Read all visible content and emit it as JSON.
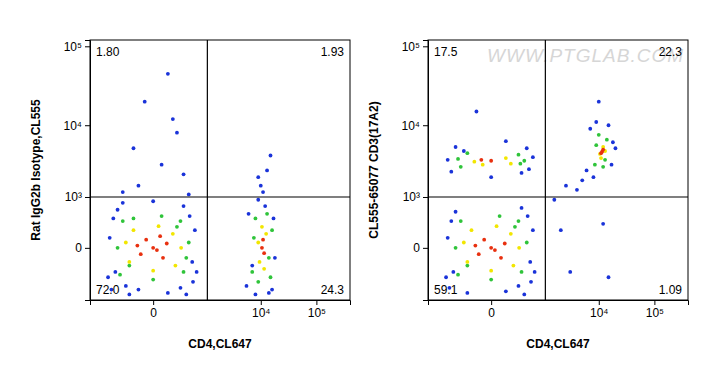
{
  "chart_data": [
    {
      "type": "scatter",
      "log": true,
      "x_label": "CD4,CL647",
      "y_label": "Rat IgG2b Isotype,CL555",
      "xlim": [
        -1500,
        400000
      ],
      "ylim": [
        -1050,
        120000
      ],
      "xticks": [
        0,
        {
          "value": 10000,
          "label": "10⁴"
        },
        {
          "value": 100000,
          "label": "10⁵"
        }
      ],
      "yticks": [
        0,
        {
          "value": 1000,
          "label": "10³"
        },
        {
          "value": 10000,
          "label": "10⁴"
        },
        {
          "value": 100000,
          "label": "10⁵"
        }
      ],
      "gates": {
        "x": 1000,
        "y": 1000
      },
      "quadrant_labels": [
        "1.80",
        "1.93",
        "72.0",
        "24.3"
      ],
      "series": [
        {
          "color": "#1a33d9",
          "x": [
            -550,
            -400,
            500,
            300,
            -600,
            550,
            -200,
            100,
            -450,
            420,
            -300,
            250,
            -500,
            480,
            0,
            -100,
            600,
            -650,
            350,
            -250,
            -100,
            50,
            200,
            -50,
            100,
            300,
            -300,
            150,
            -150,
            400,
            5500,
            17000,
            6000,
            16000,
            8000,
            12000,
            7000,
            18000,
            9000,
            14000,
            10000,
            13000,
            11000,
            15000,
            9000
          ],
          "values": [
            -700,
            600,
            -500,
            700,
            100,
            200,
            -850,
            -800,
            -300,
            450,
            800,
            -650,
            400,
            -150,
            850,
            -700,
            -300,
            -400,
            -850,
            -600,
            1500,
            3000,
            8000,
            20000,
            45000,
            2200,
            1200,
            12000,
            5000,
            1100,
            -600,
            400,
            500,
            -700,
            -850,
            700,
            -200,
            -100,
            900,
            -800,
            1500,
            2500,
            1200,
            4000,
            2000
          ]
        },
        {
          "color": "#2fc43a",
          "x": [
            -350,
            300,
            -300,
            250,
            -400,
            400,
            0,
            50,
            -200,
            200,
            -150,
            350,
            7000,
            16000,
            8000,
            15000,
            9000,
            13000,
            7500,
            14000
          ],
          "values": [
            -350,
            -300,
            350,
            350,
            0,
            50,
            -450,
            450,
            -200,
            250,
            400,
            -100,
            -300,
            200,
            400,
            -400,
            -500,
            500,
            100,
            -100
          ]
        },
        {
          "color": "#f2e600",
          "x": [
            -200,
            180,
            -150,
            150,
            -250,
            260,
            0,
            30,
            9500,
            12500,
            10500,
            11500,
            9000
          ],
          "values": [
            -150,
            -200,
            200,
            150,
            50,
            0,
            -280,
            260,
            -150,
            150,
            250,
            -250,
            50
          ]
        },
        {
          "color": "#e8300f",
          "x": [
            -80,
            60,
            -40,
            90,
            0,
            -110,
            20,
            40,
            10500,
            11500,
            11000
          ],
          "values": [
            -60,
            -100,
            80,
            40,
            0,
            20,
            -20,
            120,
            0,
            -50,
            80
          ]
        }
      ]
    },
    {
      "type": "scatter",
      "log": true,
      "x_label": "CD4,CL647",
      "y_label": "CL555-65077 CD3(17A2)",
      "xlim": [
        -1500,
        400000
      ],
      "ylim": [
        -1050,
        120000
      ],
      "xticks": [
        0,
        {
          "value": 10000,
          "label": "10⁴"
        },
        {
          "value": 100000,
          "label": "10⁵"
        }
      ],
      "yticks": [
        0,
        {
          "value": 1000,
          "label": "10³"
        },
        {
          "value": 10000,
          "label": "10⁴"
        },
        {
          "value": 100000,
          "label": "10⁵"
        }
      ],
      "gates": {
        "x": 1000,
        "y": 1000
      },
      "quadrant_labels": [
        "17.5",
        "22.3",
        "59.1",
        "1.09"
      ],
      "annotations": [
        "WWW.PTGLAB.COM"
      ],
      "series": [
        {
          "color": "#1a33d9",
          "x": [
            -550,
            -400,
            500,
            300,
            -600,
            550,
            -200,
            100,
            -450,
            420,
            250,
            -500,
            480,
            600,
            -650,
            350,
            -500,
            450,
            -400,
            400,
            -600,
            550,
            0,
            100,
            -250,
            300,
            5000,
            6000,
            18000,
            7000,
            15000,
            4000,
            17000,
            8000,
            20000,
            9000,
            2000,
            3000,
            15000,
            12000,
            1500,
            -100,
            10000,
            2500
          ],
          "values": [
            -650,
            550,
            -500,
            650,
            100,
            200,
            -800,
            -750,
            -300,
            450,
            -600,
            350,
            -150,
            -300,
            -400,
            -850,
            2400,
            2600,
            5200,
            5000,
            3500,
            3800,
            2000,
            6200,
            4600,
            2300,
            1800,
            2500,
            6000,
            9000,
            10000,
            1300,
            3000,
            2000,
            5000,
            11000,
            200,
            -300,
            -400,
            300,
            900,
            15000,
            20000,
            1500
          ]
        },
        {
          "color": "#2fc43a",
          "x": [
            -350,
            300,
            -300,
            250,
            -400,
            400,
            0,
            50,
            -200,
            200,
            -300,
            280,
            -200,
            250,
            -350,
            350,
            8500,
            14000,
            9000,
            13000,
            10000,
            12000
          ],
          "values": [
            -350,
            -300,
            350,
            350,
            0,
            50,
            -450,
            450,
            -200,
            250,
            2800,
            3100,
            4300,
            4100,
            3600,
            3400,
            3000,
            6500,
            5500,
            3500,
            7500,
            2800
          ]
        },
        {
          "color": "#f2e600",
          "x": [
            -200,
            180,
            -150,
            150,
            -250,
            260,
            0,
            30,
            -120,
            100,
            -50,
            150,
            10500,
            12000,
            11000,
            13000
          ],
          "values": [
            -150,
            -200,
            200,
            150,
            50,
            0,
            -280,
            260,
            3300,
            3700,
            3000,
            3100,
            4200,
            5200,
            3700,
            4600
          ]
        },
        {
          "color": "#e8300f",
          "x": [
            -80,
            60,
            -40,
            90,
            0,
            -110,
            20,
            0,
            -60,
            11500,
            12000,
            11000
          ],
          "values": [
            -60,
            -100,
            80,
            40,
            0,
            20,
            -20,
            3400,
            3500,
            4500,
            4800,
            4300
          ]
        }
      ]
    }
  ]
}
